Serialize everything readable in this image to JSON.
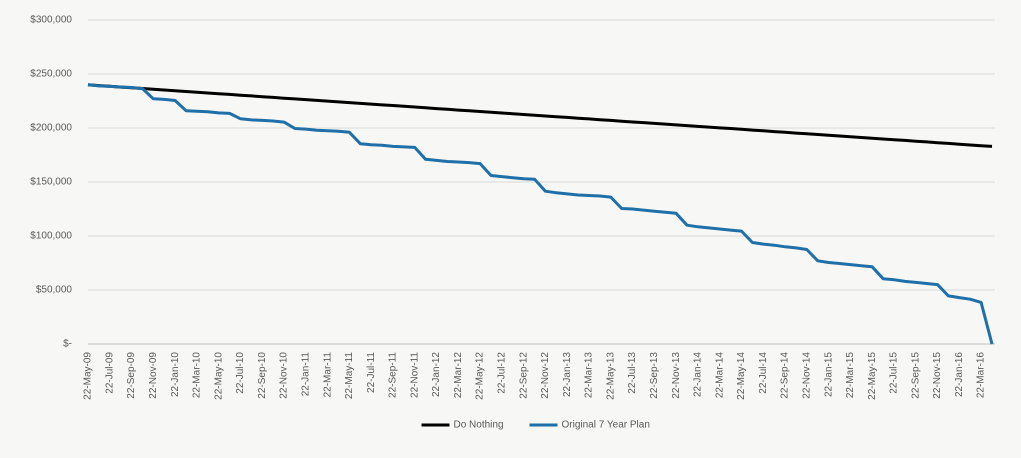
{
  "chart_data": {
    "type": "line",
    "categories": [
      "22-May-09",
      null,
      "22-Jul-09",
      null,
      "22-Sep-09",
      null,
      "22-Nov-09",
      null,
      "22-Jan-10",
      null,
      "22-Mar-10",
      null,
      "22-May-10",
      null,
      "22-Jul-10",
      null,
      "22-Sep-10",
      null,
      "22-Nov-10",
      null,
      "22-Jan-11",
      null,
      "22-Mar-11",
      null,
      "22-May-11",
      null,
      "22-Jul-11",
      null,
      "22-Sep-11",
      null,
      "22-Nov-11",
      null,
      "22-Jan-12",
      null,
      "22-Mar-12",
      null,
      "22-May-12",
      null,
      "22-Jul-12",
      null,
      "22-Sep-12",
      null,
      "22-Nov-12",
      null,
      "22-Jan-13",
      null,
      "22-Mar-13",
      null,
      "22-May-13",
      null,
      "22-Jul-13",
      null,
      "22-Sep-13",
      null,
      "22-Nov-13",
      null,
      "22-Jan-14",
      null,
      "22-Mar-14",
      null,
      "22-May-14",
      null,
      "22-Jul-14",
      null,
      "22-Sep-14",
      null,
      "22-Nov-14",
      null,
      "22-Jan-15",
      null,
      "22-Mar-15",
      null,
      "22-May-15",
      null,
      "22-Jul-15",
      null,
      "22-Sep-15",
      null,
      "22-Nov-15",
      null,
      "22-Jan-16",
      null,
      "22-Mar-16",
      null
    ],
    "series": [
      {
        "name": "Do Nothing",
        "color": "#000000",
        "values": [
          240000,
          239300,
          238600,
          237900,
          237300,
          236600,
          235900,
          235200,
          234500,
          233800,
          233100,
          232400,
          231800,
          231100,
          230400,
          229700,
          229000,
          228300,
          227600,
          226900,
          226300,
          225600,
          224900,
          224200,
          223500,
          222800,
          222100,
          221400,
          220800,
          220100,
          219400,
          218700,
          218000,
          217300,
          216600,
          215900,
          215300,
          214600,
          213900,
          213200,
          212500,
          211800,
          211100,
          210500,
          209800,
          209100,
          208400,
          207700,
          207000,
          206300,
          205600,
          205000,
          204300,
          203600,
          202900,
          202200,
          201500,
          200800,
          200100,
          199500,
          198800,
          198100,
          197400,
          196700,
          196000,
          195300,
          194600,
          194000,
          193300,
          192600,
          191900,
          191200,
          190500,
          189800,
          189100,
          188500,
          187800,
          187100,
          186400,
          185700,
          185000,
          184300,
          183600,
          183000
        ]
      },
      {
        "name": "Original 7 Year Plan",
        "color": "#1f6fa8",
        "values": [
          240000,
          239000,
          238500,
          238000,
          237500,
          236500,
          227000,
          226500,
          225500,
          216000,
          215500,
          215000,
          214000,
          213500,
          208500,
          207500,
          207000,
          206500,
          205500,
          199500,
          199000,
          198000,
          197500,
          197000,
          196000,
          185500,
          184500,
          184000,
          183000,
          182500,
          182000,
          171000,
          170000,
          169000,
          168500,
          168000,
          167000,
          156000,
          155000,
          154000,
          153000,
          152500,
          141500,
          140000,
          139000,
          138000,
          137500,
          137000,
          136000,
          125500,
          125000,
          124000,
          123000,
          122000,
          121000,
          110000,
          108500,
          107500,
          106500,
          105500,
          104500,
          94000,
          92500,
          91500,
          90000,
          89000,
          87500,
          77000,
          75500,
          74500,
          73500,
          72500,
          71500,
          60500,
          59500,
          58000,
          57000,
          56000,
          55000,
          44500,
          43000,
          41500,
          38500,
          0
        ]
      }
    ],
    "ylim": [
      0,
      300000
    ],
    "yticks": [
      {
        "value": 0,
        "label": "$-"
      },
      {
        "value": 50000,
        "label": "$50,000"
      },
      {
        "value": 100000,
        "label": "$100,000"
      },
      {
        "value": 150000,
        "label": "$150,000"
      },
      {
        "value": 200000,
        "label": "$200,000"
      },
      {
        "value": 250000,
        "label": "$250,000"
      },
      {
        "value": 300000,
        "label": "$300,000"
      }
    ],
    "grid": true,
    "legend": "bottom"
  }
}
